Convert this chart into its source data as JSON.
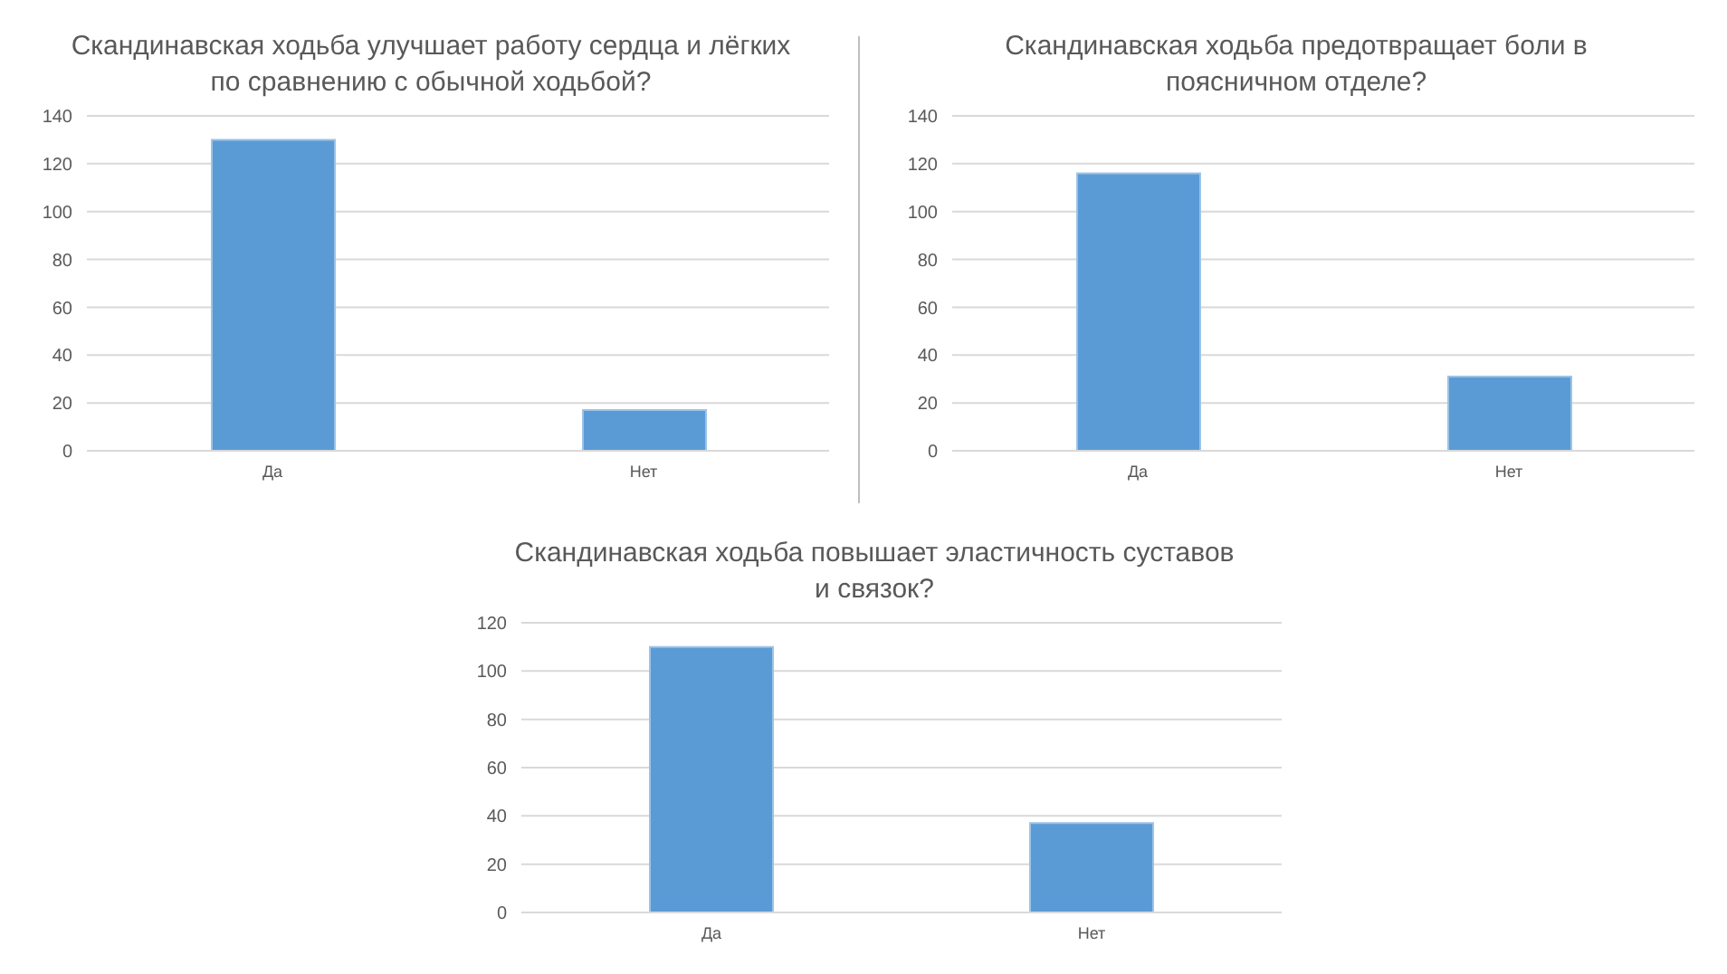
{
  "chart_data": [
    {
      "type": "bar",
      "title": "Скандинавская ходьба улучшает работу сердца и лёгких по сравнению с обычной ходьбой?",
      "categories": [
        "Да",
        "Нет"
      ],
      "values": [
        130,
        17
      ],
      "color": "#5b9bd5",
      "ylim": [
        0,
        140
      ],
      "yticks": [
        0,
        20,
        40,
        60,
        80,
        100,
        120,
        140
      ],
      "grid": "y",
      "legend": false
    },
    {
      "type": "bar",
      "title": "Скандинавская ходьба предотвращает боли в поясничном отделе?",
      "categories": [
        "Да",
        "Нет"
      ],
      "values": [
        116,
        31
      ],
      "color": "#5b9bd5",
      "ylim": [
        0,
        140
      ],
      "yticks": [
        0,
        20,
        40,
        60,
        80,
        100,
        120,
        140
      ],
      "grid": "y",
      "legend": false
    },
    {
      "type": "bar",
      "title": "Скандинавская ходьба повышает эластичность суставов и связок?",
      "categories": [
        "Да",
        "Нет"
      ],
      "values": [
        110,
        37
      ],
      "color": "#5b9bd5",
      "ylim": [
        0,
        120
      ],
      "yticks": [
        0,
        20,
        40,
        60,
        80,
        100,
        120
      ],
      "grid": "y",
      "legend": false
    }
  ]
}
